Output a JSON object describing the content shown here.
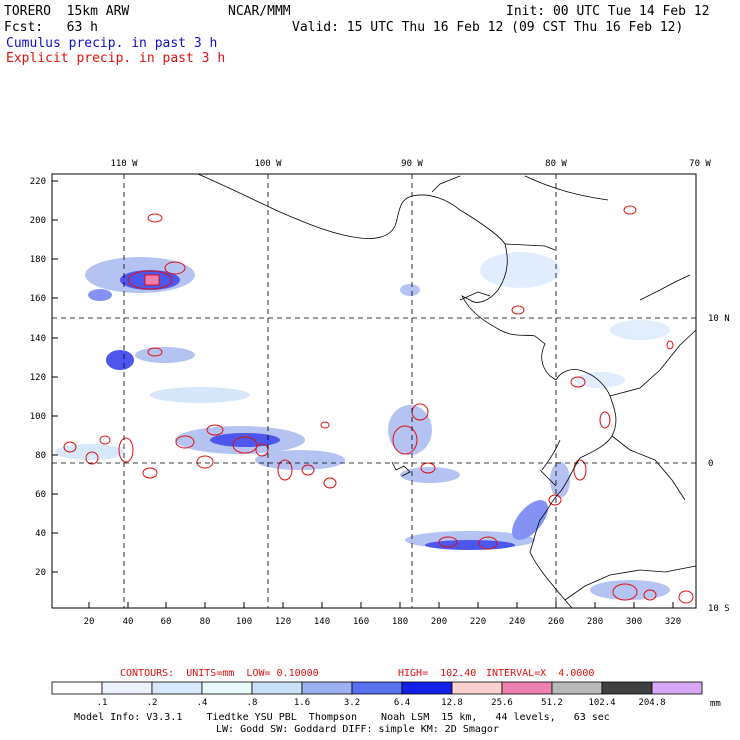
{
  "header": {
    "model": "TORERO  15km ARW",
    "org": "NCAR/MMM",
    "init": "Init: 00 UTC Tue 14 Feb 12",
    "fcst": "Fcst:   63 h",
    "valid": "Valid: 15 UTC Thu 16 Feb 12 (09 CST Thu 16 Feb 12)",
    "legend_cumulus": "Cumulus precip. in past 3 h",
    "legend_explicit": "Explicit precip. in past 3 h"
  },
  "map": {
    "top_labels": [
      "110 W",
      "100 W",
      "90 W",
      "80 W",
      "70 W"
    ],
    "right_labels": [
      "10 N",
      "0",
      "10 S"
    ],
    "y_ticks": [
      "220",
      "200",
      "180",
      "160",
      "140",
      "120",
      "100",
      "80",
      "60",
      "40",
      "20"
    ],
    "x_ticks": [
      "20",
      "40",
      "60",
      "80",
      "100",
      "120",
      "140",
      "160",
      "180",
      "200",
      "220",
      "240",
      "260",
      "280",
      "300",
      "320"
    ]
  },
  "contours": {
    "label": "CONTOURS:  UNITS=mm  LOW= 0.10000",
    "high": "HIGH=  102.40",
    "interval": "INTERVAL=X  4.0000"
  },
  "colorbar": {
    "labels": [
      ".1",
      ".2",
      ".4",
      ".8",
      "1.6",
      "3.2",
      "6.4",
      "12.8",
      "25.6",
      "51.2",
      "102.4",
      "204.8"
    ],
    "unit": "mm",
    "colors": [
      "#ffffff",
      "#eef4ff",
      "#d8e8ff",
      "#eafafa",
      "#c8e0f8",
      "#9db0f0",
      "#5a6ef0",
      "#1420e8",
      "#fcd0d0",
      "#f080b0",
      "#b8b8b8",
      "#404040",
      "#d8a8f8"
    ]
  },
  "footer": {
    "line1": "Model Info: V3.3.1    Tiedtke YSU PBL  Thompson    Noah LSM  15 km,   44 levels,   63 sec",
    "line2": "LW: Godd SW: Goddard DIFF: simple KM: 2D Smagor"
  }
}
